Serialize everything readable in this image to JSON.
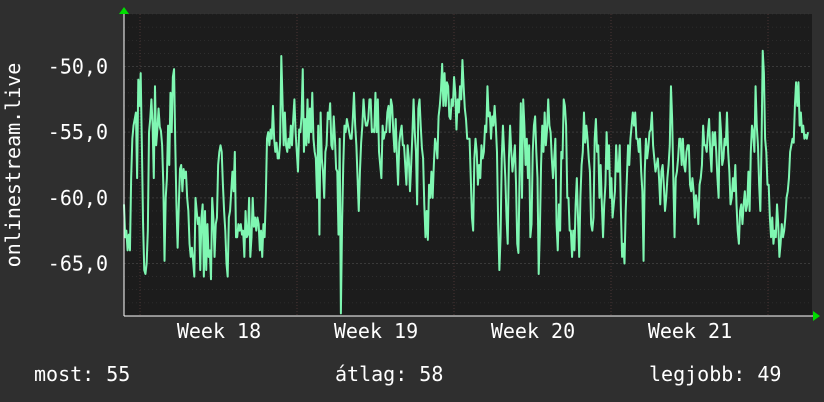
{
  "chart_data": {
    "type": "line",
    "ylabel": "onlinestream.live",
    "y_ticks": [
      -50,
      -55,
      -60,
      -65
    ],
    "y_tick_labels": [
      "-50,0",
      "-55,0",
      "-60,0",
      "-65,0"
    ],
    "ylim": [
      -69,
      -46
    ],
    "x_tick_labels": [
      "Week 18",
      "Week 19",
      "Week 20",
      "Week 21"
    ],
    "grid": true,
    "colors": {
      "line": "#7ff7b2",
      "plot_bg": "#1c1c1c",
      "grid": "#3a3a3a",
      "vgrid": "#4a3434",
      "axis": "#ffffff",
      "arrow": "#00dd00"
    },
    "series": [
      {
        "values": [
          -60.5,
          -63,
          -62.5,
          -64,
          -62.8,
          -64,
          -58.5,
          -55.5,
          -54.5,
          -54,
          -53.5,
          -58.5,
          -51,
          -53,
          -50.5,
          -56,
          -62,
          -65.5,
          -65.8,
          -65,
          -62.5,
          -55,
          -54,
          -52.5,
          -54.5,
          -58.5,
          -51.5,
          -56,
          -54.8,
          -53.2,
          -54.6,
          -54.9,
          -56,
          -59,
          -64.8,
          -60,
          -58.5,
          -54.5,
          -57.5,
          -52,
          -55,
          -50.8,
          -50.2,
          -55.8,
          -60.5,
          -63.8,
          -60.5,
          -57.8,
          -57.5,
          -59.5,
          -57.8,
          -58.5,
          -58,
          -60,
          -61,
          -63.5,
          -64.5,
          -63.8,
          -64.8,
          -66,
          -60,
          -61,
          -62,
          -61.5,
          -65.5,
          -61.5,
          -60.5,
          -66,
          -61,
          -65.5,
          -62,
          -64.5,
          -64,
          -66.2,
          -60,
          -61.5,
          -64.5,
          -62,
          -61.5,
          -57.5,
          -56.5,
          -56,
          -56.5,
          -59,
          -61,
          -62.5,
          -65,
          -66,
          -61.5,
          -61,
          -59.5,
          -58,
          -59.5,
          -56.5,
          -63,
          -63,
          -62,
          -62.5,
          -62,
          -62.8,
          -62.5,
          -64.5,
          -61,
          -63,
          -62.8,
          -60,
          -64.5,
          -63,
          -60,
          -62.2,
          -61.5,
          -62.5,
          -61.5,
          -62,
          -64,
          -62.5,
          -64.5,
          -62,
          -63,
          -60,
          -55.5,
          -55,
          -56,
          -54.8,
          -55.5,
          -53,
          -55.5,
          -56.5,
          -55.8,
          -57,
          -57,
          -55.8,
          -49.2,
          -52.5,
          -56,
          -53.5,
          -56,
          -56.5,
          -55.5,
          -56.2,
          -54.5,
          -56,
          -54,
          -52.5,
          -55,
          -56.5,
          -58,
          -54.8,
          -55,
          -53.8,
          -50.2,
          -56.5,
          -54,
          -56,
          -52.5,
          -55.8,
          -53.2,
          -55,
          -52,
          -55.5,
          -56.5,
          -57,
          -60,
          -54.5,
          -62.8,
          -53.5,
          -57,
          -58,
          -60,
          -56.5,
          -56,
          -53.5,
          -54,
          -52.8,
          -56,
          -56.3,
          -53.8,
          -55.5,
          -57.8,
          -58,
          -62.8,
          -55.5,
          -68.8,
          -62,
          -57.5,
          -54.5,
          -55,
          -54,
          -54.5,
          -55,
          -55.5,
          -55.5,
          -54,
          -52,
          -54.5,
          -56,
          -58.5,
          -61,
          -58,
          -55.8,
          -54.5,
          -52.5,
          -53.8,
          -54.5,
          -54.5,
          -54,
          -52.5,
          -52.5,
          -55,
          -54.8,
          -55,
          -52,
          -55,
          -52.5,
          -56.5,
          -57.5,
          -58.5,
          -54.5,
          -55.5,
          -55,
          -55,
          -53.5,
          -53,
          -55,
          -52.5,
          -53,
          -55,
          -56.5,
          -54,
          -56.8,
          -59,
          -55.8,
          -55,
          -54.5,
          -56,
          -56,
          -57.5,
          -59,
          -56,
          -57,
          -59.5,
          -57.5,
          -55.2,
          -52.5,
          -55,
          -56.5,
          -60.5,
          -53.2,
          -52.5,
          -54.5,
          -56.2,
          -57,
          -60.5,
          -63,
          -61,
          -63.2,
          -59,
          -60,
          -58,
          -60,
          -57.5,
          -55.5,
          -56,
          -57,
          -53.8,
          -53,
          -51.8,
          -49.8,
          -53,
          -50.5,
          -53,
          -51.2,
          -51.5,
          -53.8,
          -54,
          -52.5,
          -53,
          -50.8,
          -52,
          -54.8,
          -52.5,
          -53.5,
          -51.5,
          -52.5,
          -49.5,
          -51.5,
          -53.2,
          -54,
          -55.5,
          -55.5,
          -55.5,
          -58.5,
          -61.5,
          -62.5,
          -57,
          -55.5,
          -56.5,
          -59,
          -57.5,
          -58.5,
          -56,
          -57,
          -56.5,
          -54.5,
          -55,
          -51.5,
          -53.8,
          -53.5,
          -55.5,
          -53.8,
          -54.5,
          -53,
          -54.5,
          -56.5,
          -62,
          -65.5,
          -63,
          -57,
          -54.5,
          -56.5,
          -58.5,
          -61.5,
          -63.5,
          -57,
          -54.5,
          -56.5,
          -58,
          -57,
          -56,
          -59,
          -63.5,
          -64.2,
          -58,
          -52.8,
          -60,
          -52.5,
          -54.5,
          -57.5,
          -55.5,
          -58.5,
          -56,
          -63,
          -62,
          -56.5,
          -54.5,
          -53.8,
          -56.5,
          -58.5,
          -65.8,
          -62.5,
          -57.5,
          -54.5,
          -56.5,
          -53.5,
          -56,
          -54.8,
          -52.5,
          -54.5,
          -55,
          -57,
          -58.5,
          -57,
          -55.5,
          -62,
          -64,
          -60.5,
          -62.5,
          -56.5,
          -57,
          -52.5,
          -53,
          -54.5,
          -60,
          -60,
          -62.5,
          -62.5,
          -64.5,
          -62.5,
          -64,
          -60.5,
          -58.5,
          -61.5,
          -64.5,
          -60,
          -57.5,
          -56.5,
          -53.5,
          -55.8,
          -54.5,
          -55.5,
          -57,
          -58,
          -62,
          -62.5,
          -61.5,
          -55.5,
          -54,
          -56.5,
          -56,
          -60,
          -57.5,
          -60.5,
          -63,
          -60.5,
          -59,
          -55,
          -57.8,
          -56,
          -60,
          -58.5,
          -61.5,
          -60.5,
          -59.5,
          -56,
          -58,
          -58,
          -56,
          -61,
          -64.5,
          -63.5,
          -65,
          -61,
          -58.5,
          -56,
          -57.5,
          -55.5,
          -54.5,
          -53.5,
          -54.5,
          -53.5,
          -55.5,
          -55.5,
          -56.5,
          -55.5,
          -58,
          -59.5,
          -64.8,
          -58,
          -55.5,
          -57,
          -56.2,
          -55,
          -54.8,
          -53.5,
          -56,
          -57,
          -58,
          -57.5,
          -57,
          -58.5,
          -60.5,
          -58,
          -57.5,
          -59,
          -61,
          -60,
          -58.5,
          -57.5,
          -56,
          -51.5,
          -54,
          -58.5,
          -63,
          -58.5,
          -58,
          -57,
          -55.5,
          -55.5,
          -57.5,
          -55.5,
          -57.5,
          -58,
          -56.5,
          -56,
          -56,
          -59,
          -59.5,
          -58.5,
          -59.5,
          -61.5,
          -59.8,
          -60.5,
          -62,
          -59,
          -58.5,
          -57.5,
          -54.5,
          -56,
          -56,
          -56.5,
          -55,
          -54,
          -56.5,
          -58,
          -55,
          -56,
          -55,
          -56.5,
          -58.5,
          -60,
          -53.5,
          -55,
          -57.5,
          -57,
          -55.5,
          -56,
          -53.5,
          -56.5,
          -58,
          -60.5,
          -60,
          -58.5,
          -59.5,
          -57.5,
          -60.5,
          -62.5,
          -63.5,
          -61,
          -60.5,
          -62,
          -60.5,
          -59.5,
          -61,
          -60.5,
          -58,
          -61,
          -56.5,
          -54.5,
          -55,
          -56.5,
          -51.5,
          -54.5,
          -56,
          -59,
          -61,
          -56,
          -48.8,
          -50.5,
          -55.5,
          -56.5,
          -59,
          -59,
          -61.5,
          -63,
          -61.5,
          -63.5,
          -62.5,
          -63,
          -60.5,
          -62,
          -64.5,
          -63.5,
          -62,
          -63,
          -62.5,
          -61.5,
          -60,
          -59.5,
          -58.5,
          -56.5,
          -56,
          -55.5,
          -55.8,
          -53,
          -51.2,
          -53,
          -51.2,
          -54.5,
          -53.5,
          -55,
          -54.5,
          -55.5,
          -55.2,
          -55.5,
          -55
        ]
      }
    ],
    "stats": {
      "current_label": "most: 55",
      "average_label": "átlag: 58",
      "best_label": "legjobb: 49"
    }
  }
}
